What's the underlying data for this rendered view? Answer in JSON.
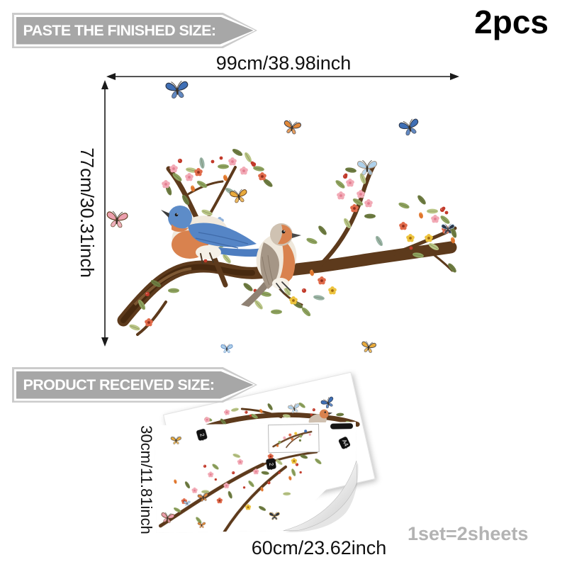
{
  "counts": {
    "pieces": "2pcs",
    "set_info": "1set=2sheets"
  },
  "banners": {
    "finished_label": "PASTE THE FINISHED SIZE:",
    "received_label": "PRODUCT RECEIVED SIZE:"
  },
  "dimensions": {
    "finished_width": "99cm/38.98inch",
    "finished_height": "77cm/30.31inch",
    "received_height": "30cm/11.81inch",
    "received_width": "60cm/23.62inch"
  },
  "sheet_tags": {
    "tag_a": "2",
    "tag_b": "2",
    "tag_c": "A4"
  },
  "icons": {
    "main_butterflies": [
      "butterfly-blue-top",
      "butterfly-orange",
      "butterfly-blue-right",
      "butterfly-lightblue",
      "butterfly-pink-left",
      "butterfly-yellow-mid",
      "butterfly-dark-right",
      "butterfly-lightblue-bottom",
      "butterfly-yellow-bottom"
    ],
    "birds": [
      "bluebird-illustration",
      "robin-illustration"
    ]
  },
  "colors": {
    "banner_fill": "#a7a7a7",
    "banner_outline": "#cbcbcb",
    "banner_text": "#ffffff",
    "text_primary": "#111111",
    "set_info_text": "#b3b3b3",
    "branch": "#5d3a1c",
    "branch_dark": "#47290f",
    "branch_light": "#7d5833",
    "leaf_green": "#8fa35f",
    "leaf_olive": "#6e7c42",
    "leaf_light": "#bac687",
    "leaf_teal": "#9ab4a6",
    "flower_pink": "#f2aab6",
    "flower_pink_deep": "#e27d90",
    "flower_coral": "#e06a4a",
    "flower_yellow": "#edc33e",
    "flower_orange": "#e0762e",
    "flower_blue": "#8fb2dc",
    "berry_red": "#c23a2a",
    "bluebird_blue": "#5d8cc8",
    "bluebird_dark": "#3f6aa8",
    "bird_orange": "#d9824e",
    "bird_cream": "#f1e9dd",
    "robin_brown": "#a59686",
    "butterfly_blue": "#3f6fb5",
    "butterfly_dark": "#2c3648",
    "butterfly_lightblue": "#aed0ea",
    "butterfly_pink": "#ec9fae",
    "butterfly_yellow": "#e8aa3c",
    "butterfly_orange": "#e0883a",
    "sheet_border": "#e2e2e2",
    "curl_gray": "#c6c6c6"
  }
}
